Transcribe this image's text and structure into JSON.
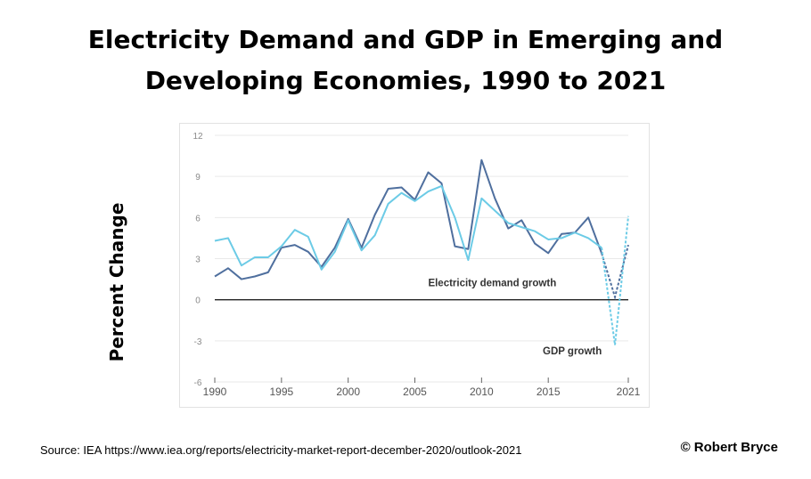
{
  "header": {
    "title_line1": "Electricity Demand and GDP in Emerging and",
    "title_line2": "Developing Economies, 1990 to 2021"
  },
  "axis": {
    "ylabel": "Percent Change"
  },
  "footer": {
    "source": "Source: IEA https://www.iea.org/reports/electricity-market-report-december-2020/outlook-2021",
    "copyright": "© Robert Bryce"
  },
  "colors": {
    "electricity": "#4f6f9e",
    "gdp": "#6ccbe6",
    "zero_line": "#222222",
    "grid": "#e9e9e9",
    "tick_label": "#8a8a8a"
  },
  "chart_data": {
    "type": "line",
    "title": "Electricity Demand and GDP in Emerging and Developing Economies, 1990 to 2021",
    "xlabel": "",
    "ylabel": "Percent Change",
    "xlim": [
      1990,
      2021
    ],
    "ylim": [
      -6,
      12
    ],
    "x_ticks": [
      "1990",
      "1995",
      "2000",
      "2005",
      "2010",
      "2015",
      "2021"
    ],
    "y_ticks": [
      "12",
      "9",
      "6",
      "3",
      "0",
      "-3",
      "-6"
    ],
    "grid": "horizontal",
    "x": [
      1990,
      1991,
      1992,
      1993,
      1994,
      1995,
      1996,
      1997,
      1998,
      1999,
      2000,
      2001,
      2002,
      2003,
      2004,
      2005,
      2006,
      2007,
      2008,
      2009,
      2010,
      2011,
      2012,
      2013,
      2014,
      2015,
      2016,
      2017,
      2018,
      2019,
      2020,
      2021
    ],
    "series": [
      {
        "name": "Electricity demand growth",
        "values": [
          1.7,
          2.3,
          1.5,
          1.7,
          2.0,
          3.8,
          4.0,
          3.5,
          2.4,
          3.8,
          5.9,
          3.8,
          6.2,
          8.1,
          8.2,
          7.3,
          9.3,
          8.5,
          3.9,
          3.7,
          10.2,
          7.4,
          5.2,
          5.8,
          4.1,
          3.4,
          4.8,
          4.9,
          6.0,
          3.4,
          0.2,
          4.0
        ],
        "projected_from": 2019
      },
      {
        "name": "GDP growth",
        "values": [
          4.3,
          4.5,
          2.5,
          3.1,
          3.1,
          3.9,
          5.1,
          4.6,
          2.2,
          3.5,
          5.8,
          3.6,
          4.7,
          7.0,
          7.8,
          7.2,
          7.9,
          8.3,
          6.0,
          2.9,
          7.4,
          6.5,
          5.6,
          5.3,
          5.0,
          4.4,
          4.5,
          4.9,
          4.5,
          3.8,
          -3.3,
          6.1
        ],
        "projected_from": 2019
      }
    ],
    "annotations": [
      {
        "text": "Electricity demand growth",
        "x": 2010.8,
        "y": 1.0
      },
      {
        "text": "GDP growth",
        "x": 2016.8,
        "y": -4.0
      }
    ]
  }
}
